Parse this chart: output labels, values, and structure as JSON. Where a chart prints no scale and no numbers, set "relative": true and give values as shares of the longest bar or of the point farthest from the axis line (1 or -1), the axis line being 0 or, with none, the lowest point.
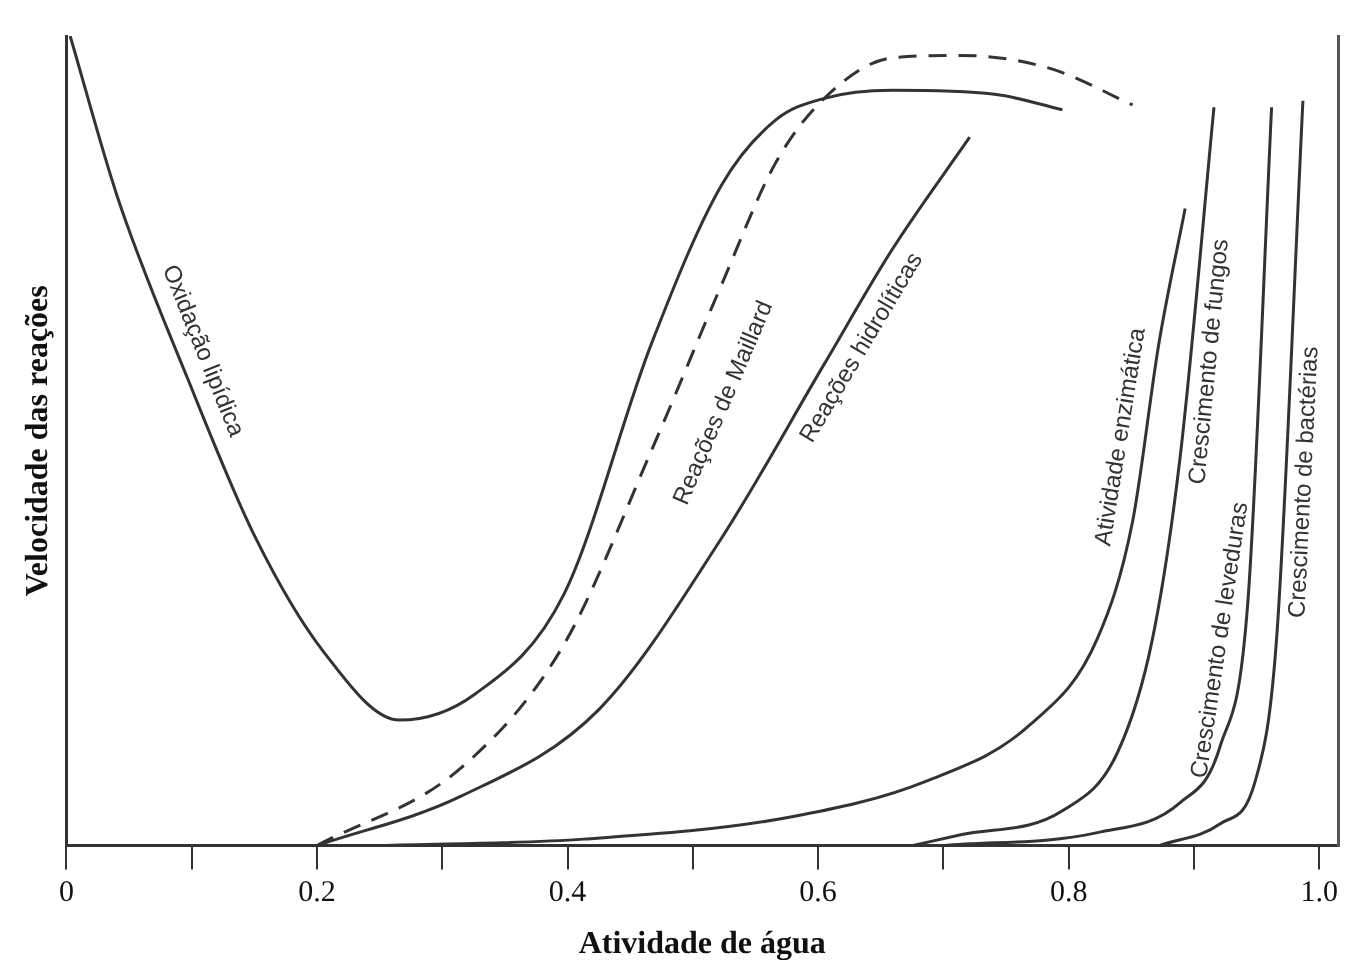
{
  "chart_data": {
    "type": "line",
    "relative": true,
    "xlabel": "Atividade de água",
    "ylabel": "Velocidade das reações",
    "xlim": [
      0,
      1.015
    ],
    "xticks": [
      0,
      {
        "value": 0.1,
        "label": null
      },
      0.2,
      {
        "value": 0.3,
        "label": null
      },
      0.4,
      {
        "value": 0.5,
        "label": null
      },
      0.6,
      {
        "value": 0.7,
        "label": null
      },
      0.8,
      {
        "value": 0.9,
        "label": null
      },
      {
        "value": 1,
        "label": "1.0"
      }
    ],
    "grid": false,
    "legend": false,
    "marker": "none",
    "series": [
      {
        "name": "Oxidação lipídica",
        "color": "#333333",
        "line_style": "solid",
        "x": [
          0.003,
          0.041,
          0.097,
          0.151,
          0.205,
          0.266,
          0.326,
          0.397,
          0.467,
          0.523,
          0.566,
          0.605,
          0.659,
          0.741,
          0.795
        ],
        "values": [
          1.0,
          0.8,
          0.576,
          0.38,
          0.24,
          0.155,
          0.187,
          0.31,
          0.62,
          0.816,
          0.896,
          0.923,
          0.933,
          0.928,
          0.909
        ]
      },
      {
        "name": "Reações de Maillard",
        "color": "#333333",
        "line_style": "dashed",
        "x": [
          0.2,
          0.315,
          0.397,
          0.467,
          0.523,
          0.566,
          0.605,
          0.659,
          0.713,
          0.785,
          0.851
        ],
        "values": [
          0,
          0.096,
          0.248,
          0.488,
          0.693,
          0.843,
          0.923,
          0.973,
          0.976,
          0.96,
          0.915
        ]
      },
      {
        "name": "Reações hidrolíticas",
        "color": "#333333",
        "line_style": "solid",
        "x": [
          0.2,
          0.315,
          0.425,
          0.523,
          0.605,
          0.659,
          0.721
        ],
        "values": [
          0,
          0.061,
          0.168,
          0.38,
          0.595,
          0.736,
          0.875
        ]
      },
      {
        "name": "Atividade enzimática",
        "color": "#333333",
        "line_style": "solid",
        "x": [
          0.25,
          0.413,
          0.577,
          0.687,
          0.769,
          0.823,
          0.851,
          0.872,
          0.893
        ],
        "values": [
          0,
          0.008,
          0.035,
          0.08,
          0.149,
          0.256,
          0.4,
          0.62,
          0.787
        ]
      },
      {
        "name": "Crescimento de fungos",
        "color": "#333333",
        "line_style": "solid",
        "x": [
          0.675,
          0.713,
          0.795,
          0.839,
          0.867,
          0.889,
          0.916
        ],
        "values": [
          0,
          0.013,
          0.043,
          0.115,
          0.256,
          0.48,
          0.912
        ]
      },
      {
        "name": "Crescimento de leveduras",
        "color": "#333333",
        "line_style": "solid",
        "x": [
          0.7,
          0.823,
          0.889,
          0.921,
          0.943,
          0.962
        ],
        "values": [
          0,
          0.016,
          0.053,
          0.123,
          0.3,
          0.912
        ]
      },
      {
        "name": "Crescimento de bactérias",
        "color": "#333333",
        "line_style": "solid",
        "x": [
          0.872,
          0.921,
          0.949,
          0.966,
          0.987
        ],
        "values": [
          0,
          0.027,
          0.08,
          0.256,
          0.92
        ]
      }
    ]
  }
}
